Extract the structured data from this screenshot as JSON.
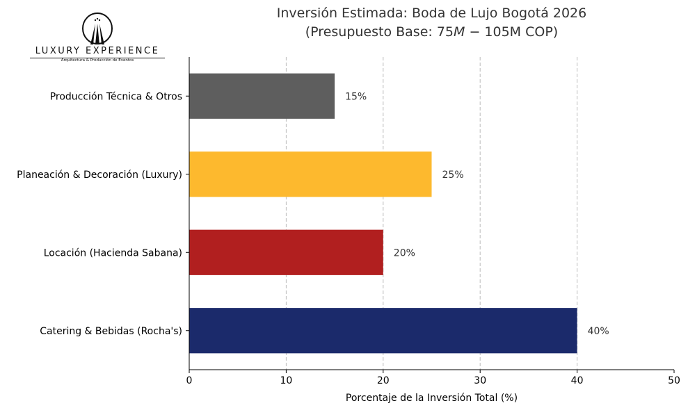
{
  "logo": {
    "name": "LUXURY EXPERIENCE",
    "tagline": "Arquitectura & Producción de Eventos"
  },
  "chart_data": {
    "type": "bar",
    "orientation": "horizontal",
    "title_line1": "Inversión Estimada: Boda de Lujo Bogotá 2026",
    "title_line2_prefix": "(Presupuesto Base: 75",
    "title_line2_italic": "M",
    "title_line2_suffix": " − 105M COP)",
    "xlabel": "Porcentaje de la Inversión Total (%)",
    "ylabel": "",
    "xlim": [
      0,
      50
    ],
    "xticks": [
      "0",
      "10",
      "20",
      "30",
      "40",
      "50"
    ],
    "grid": "x-dashed",
    "categories": [
      "Catering & Bebidas (Rocha's)",
      "Locación (Hacienda Sabana)",
      "Planeación & Decoración (Luxury)",
      "Producción Técnica & Otros"
    ],
    "values": [
      40,
      20,
      25,
      15
    ],
    "data_labels": [
      "40%",
      "20%",
      "25%",
      "15%"
    ],
    "colors": [
      "#1b2a6b",
      "#b11f1f",
      "#fdb92e",
      "#5e5e5e"
    ]
  }
}
